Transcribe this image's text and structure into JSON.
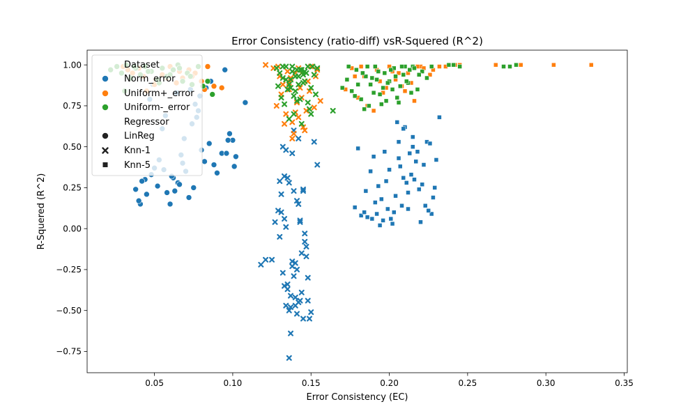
{
  "chart_data": {
    "type": "scatter",
    "title": "Error Consistency (ratio-diff) vsR-Squered (R^2)",
    "xlabel": "Error Consistency (EC)",
    "ylabel": "R-Squered (R^2)",
    "xlim": [
      0.007,
      0.352
    ],
    "ylim": [
      -0.88,
      1.09
    ],
    "xticks": [
      0.05,
      0.1,
      0.15,
      0.2,
      0.25,
      0.3,
      0.35
    ],
    "xtick_labels": [
      "0.05",
      "0.10",
      "0.15",
      "0.20",
      "0.25",
      "0.30",
      "0.35"
    ],
    "yticks": [
      -0.75,
      -0.5,
      -0.25,
      0.0,
      0.25,
      0.5,
      0.75,
      1.0
    ],
    "ytick_labels": [
      "−0.75",
      "−0.50",
      "−0.25",
      "0.00",
      "0.25",
      "0.50",
      "0.75",
      "1.00"
    ],
    "grid": false,
    "legend": {
      "position": "top-left",
      "hue_title": "Dataset",
      "hue_entries": [
        {
          "name": "Norm_error",
          "color": "#1f77b4"
        },
        {
          "name": "Uniform+_error",
          "color": "#ff7f0e"
        },
        {
          "name": "Uniform-_error",
          "color": "#2ca02c"
        }
      ],
      "style_title": "Regressor",
      "style_entries": [
        {
          "name": "LinReg",
          "marker": "circle"
        },
        {
          "name": "Knn-1",
          "marker": "x"
        },
        {
          "name": "Knn-5",
          "marker": "square"
        }
      ]
    },
    "series": [
      {
        "dataset": "Norm_error",
        "regressor": "LinReg",
        "color": "#1f77b4",
        "marker": "circle",
        "x": [
          0.038,
          0.041,
          0.045,
          0.048,
          0.05,
          0.052,
          0.055,
          0.058,
          0.06,
          0.062,
          0.065,
          0.067,
          0.07,
          0.072,
          0.075,
          0.078,
          0.08,
          0.082,
          0.085,
          0.088,
          0.09,
          0.093,
          0.095,
          0.098,
          0.1,
          0.102,
          0.108,
          0.04,
          0.044,
          0.049,
          0.053,
          0.057,
          0.061,
          0.066,
          0.069,
          0.073,
          0.076,
          0.083,
          0.086,
          0.096,
          0.047,
          0.051,
          0.059,
          0.064,
          0.071,
          0.074,
          0.079,
          0.042,
          0.056,
          0.063,
          0.068,
          0.077,
          0.097,
          0.101
        ],
        "y": [
          0.24,
          0.15,
          0.21,
          0.33,
          0.37,
          0.26,
          0.61,
          0.22,
          0.15,
          0.31,
          0.28,
          0.45,
          0.35,
          0.19,
          0.25,
          0.72,
          0.48,
          0.41,
          0.52,
          0.39,
          0.34,
          0.46,
          0.97,
          0.58,
          0.54,
          0.44,
          0.77,
          0.17,
          0.3,
          0.88,
          0.42,
          0.69,
          0.32,
          0.27,
          0.55,
          0.85,
          0.76,
          0.86,
          0.9,
          0.46,
          0.79,
          0.91,
          0.93,
          0.83,
          0.95,
          0.64,
          0.81,
          0.29,
          0.36,
          0.23,
          0.4,
          0.68,
          0.54,
          0.38
        ]
      },
      {
        "dataset": "Uniform+_error",
        "regressor": "LinReg",
        "color": "#ff7f0e",
        "marker": "circle",
        "x": [
          0.03,
          0.033,
          0.036,
          0.04,
          0.043,
          0.047,
          0.051,
          0.055,
          0.06,
          0.064,
          0.068,
          0.072,
          0.076,
          0.08,
          0.084,
          0.088,
          0.093,
          0.045,
          0.05,
          0.058,
          0.066,
          0.074,
          0.082
        ],
        "y": [
          0.99,
          0.97,
          0.95,
          0.98,
          0.93,
          0.96,
          0.91,
          0.94,
          0.99,
          0.89,
          0.92,
          0.97,
          0.95,
          0.9,
          0.99,
          0.87,
          0.86,
          0.84,
          0.88,
          0.92,
          0.96,
          0.93,
          0.85
        ]
      },
      {
        "dataset": "Uniform-_error",
        "regressor": "LinReg",
        "color": "#2ca02c",
        "marker": "circle",
        "x": [
          0.022,
          0.026,
          0.029,
          0.032,
          0.035,
          0.038,
          0.041,
          0.044,
          0.048,
          0.052,
          0.055,
          0.058,
          0.062,
          0.065,
          0.068,
          0.071,
          0.074,
          0.078,
          0.081,
          0.084,
          0.087,
          0.031,
          0.037,
          0.046,
          0.053,
          0.06,
          0.066,
          0.073
        ],
        "y": [
          0.97,
          0.99,
          0.95,
          1.0,
          0.92,
          0.98,
          0.94,
          0.99,
          0.96,
          0.91,
          0.98,
          0.93,
          0.97,
          1.0,
          0.9,
          0.95,
          0.88,
          0.99,
          0.87,
          0.9,
          0.82,
          0.84,
          0.99,
          0.96,
          0.89,
          0.94,
          0.98,
          0.93
        ]
      },
      {
        "dataset": "Norm_error",
        "regressor": "Knn-1",
        "color": "#1f77b4",
        "marker": "x",
        "x": [
          0.118,
          0.121,
          0.125,
          0.127,
          0.129,
          0.13,
          0.131,
          0.132,
          0.133,
          0.134,
          0.135,
          0.136,
          0.137,
          0.138,
          0.139,
          0.14,
          0.141,
          0.142,
          0.143,
          0.144,
          0.145,
          0.146,
          0.147,
          0.148,
          0.149,
          0.15,
          0.152,
          0.154,
          0.131,
          0.133,
          0.135,
          0.137,
          0.139,
          0.141,
          0.143,
          0.145,
          0.147,
          0.134,
          0.136,
          0.138,
          0.14,
          0.142,
          0.144,
          0.132,
          0.146,
          0.139,
          0.137,
          0.141,
          0.135,
          0.143,
          0.13,
          0.148,
          0.138,
          0.134,
          0.14,
          0.136,
          0.142,
          0.145,
          0.133
        ],
        "y": [
          -0.22,
          -0.19,
          -0.19,
          0.04,
          0.11,
          -0.05,
          0.21,
          -0.27,
          0.06,
          -0.47,
          -0.34,
          -0.5,
          -0.64,
          -0.2,
          -0.29,
          -0.42,
          -0.52,
          -0.45,
          0.04,
          -0.15,
          -0.55,
          -0.03,
          -0.11,
          -0.44,
          -0.55,
          -0.51,
          0.53,
          0.39,
          0.1,
          0.32,
          -0.37,
          -0.41,
          0.23,
          -0.25,
          -0.44,
          0.23,
          -0.17,
          0.01,
          0.28,
          -0.23,
          -0.47,
          0.15,
          -0.39,
          0.5,
          -0.08,
          0.6,
          -0.48,
          0.17,
          0.31,
          0.05,
          0.29,
          -0.3,
          0.46,
          0.48,
          -0.21,
          -0.79,
          0.55,
          0.24,
          -0.35
        ]
      },
      {
        "dataset": "Uniform+_error",
        "regressor": "Knn-1",
        "color": "#ff7f0e",
        "marker": "x",
        "x": [
          0.121,
          0.126,
          0.128,
          0.13,
          0.132,
          0.134,
          0.136,
          0.138,
          0.14,
          0.142,
          0.144,
          0.146,
          0.148,
          0.15,
          0.152,
          0.154,
          0.156,
          0.131,
          0.135,
          0.139,
          0.143,
          0.147,
          0.133,
          0.137,
          0.141,
          0.145,
          0.129,
          0.149,
          0.153,
          0.138,
          0.142,
          0.136,
          0.14,
          0.144
        ],
        "y": [
          1.0,
          0.98,
          0.75,
          0.93,
          0.88,
          0.7,
          0.85,
          0.65,
          0.95,
          0.68,
          0.8,
          0.6,
          0.9,
          0.99,
          0.74,
          0.97,
          0.78,
          0.82,
          0.96,
          0.58,
          0.86,
          0.72,
          0.64,
          0.92,
          0.77,
          0.62,
          0.99,
          0.84,
          0.93,
          0.55,
          0.98,
          0.89,
          0.71,
          0.95
        ]
      },
      {
        "dataset": "Uniform-_error",
        "regressor": "Knn-1",
        "color": "#2ca02c",
        "marker": "x",
        "x": [
          0.128,
          0.13,
          0.132,
          0.134,
          0.136,
          0.138,
          0.14,
          0.142,
          0.144,
          0.146,
          0.148,
          0.15,
          0.152,
          0.154,
          0.131,
          0.133,
          0.135,
          0.137,
          0.139,
          0.141,
          0.143,
          0.145,
          0.147,
          0.149,
          0.151,
          0.129,
          0.153,
          0.136,
          0.14,
          0.144,
          0.148,
          0.138,
          0.142,
          0.146,
          0.134,
          0.15,
          0.164,
          0.132,
          0.139,
          0.145,
          0.141,
          0.137,
          0.143
        ],
        "y": [
          0.98,
          0.95,
          0.92,
          0.99,
          0.88,
          0.96,
          0.84,
          0.93,
          0.97,
          0.9,
          0.99,
          0.86,
          0.94,
          0.98,
          0.8,
          0.76,
          0.85,
          0.91,
          0.7,
          0.97,
          0.79,
          0.89,
          0.95,
          0.73,
          0.99,
          0.87,
          0.82,
          0.67,
          0.93,
          0.64,
          0.77,
          0.99,
          0.88,
          0.96,
          0.91,
          0.7,
          0.72,
          0.99,
          0.81,
          0.94,
          0.78,
          0.86,
          0.97
        ]
      },
      {
        "dataset": "Norm_error",
        "regressor": "Knn-5",
        "color": "#1f77b4",
        "marker": "square",
        "x": [
          0.178,
          0.18,
          0.182,
          0.184,
          0.186,
          0.188,
          0.19,
          0.192,
          0.194,
          0.196,
          0.198,
          0.2,
          0.202,
          0.204,
          0.206,
          0.208,
          0.21,
          0.212,
          0.214,
          0.216,
          0.218,
          0.22,
          0.222,
          0.224,
          0.226,
          0.228,
          0.23,
          0.232,
          0.185,
          0.191,
          0.197,
          0.203,
          0.209,
          0.215,
          0.221,
          0.227,
          0.193,
          0.199,
          0.205,
          0.211,
          0.217,
          0.223,
          0.201,
          0.207,
          0.213,
          0.219,
          0.195,
          0.225,
          0.189,
          0.229,
          0.209,
          0.215,
          0.206,
          0.212
        ],
        "y": [
          0.13,
          0.49,
          0.08,
          0.1,
          0.07,
          0.35,
          0.44,
          0.09,
          0.02,
          0.05,
          0.29,
          0.36,
          0.03,
          0.2,
          0.43,
          0.14,
          0.62,
          0.12,
          0.33,
          0.3,
          0.47,
          0.04,
          0.39,
          0.53,
          0.52,
          0.19,
          0.42,
          0.68,
          0.23,
          0.16,
          0.47,
          0.1,
          0.31,
          0.56,
          0.27,
          0.09,
          0.26,
          0.12,
          0.65,
          0.28,
          0.41,
          0.14,
          0.06,
          0.38,
          0.46,
          0.24,
          0.18,
          0.11,
          0.06,
          0.25,
          0.61,
          0.5,
          0.53,
          0.22
        ]
      },
      {
        "dataset": "Uniform+_error",
        "regressor": "Knn-5",
        "color": "#ff7f0e",
        "marker": "square",
        "x": [
          0.172,
          0.176,
          0.18,
          0.184,
          0.188,
          0.192,
          0.196,
          0.2,
          0.204,
          0.208,
          0.212,
          0.216,
          0.22,
          0.224,
          0.228,
          0.232,
          0.236,
          0.242,
          0.245,
          0.268,
          0.284,
          0.305,
          0.329,
          0.186,
          0.194,
          0.202,
          0.21,
          0.218,
          0.226,
          0.19,
          0.198,
          0.206,
          0.214,
          0.222,
          0.182,
          0.178
        ],
        "y": [
          0.85,
          0.98,
          0.8,
          0.93,
          0.88,
          0.97,
          0.83,
          0.99,
          0.91,
          0.87,
          0.95,
          0.78,
          0.99,
          0.92,
          0.97,
          0.99,
          0.99,
          1.0,
          1.0,
          1.0,
          1.0,
          1.0,
          1.0,
          0.75,
          0.9,
          0.96,
          0.84,
          0.99,
          0.94,
          0.72,
          0.86,
          0.95,
          0.89,
          0.98,
          0.99,
          0.93
        ]
      },
      {
        "dataset": "Uniform-_error",
        "regressor": "Knn-5",
        "color": "#2ca02c",
        "marker": "square",
        "x": [
          0.17,
          0.173,
          0.176,
          0.179,
          0.182,
          0.185,
          0.188,
          0.191,
          0.194,
          0.197,
          0.2,
          0.203,
          0.206,
          0.209,
          0.212,
          0.215,
          0.218,
          0.221,
          0.224,
          0.227,
          0.238,
          0.241,
          0.245,
          0.273,
          0.277,
          0.281,
          0.174,
          0.178,
          0.183,
          0.187,
          0.192,
          0.196,
          0.201,
          0.205,
          0.21,
          0.214,
          0.219,
          0.18,
          0.189,
          0.198,
          0.207,
          0.216,
          0.184,
          0.193,
          0.202,
          0.211,
          0.186,
          0.195,
          0.204,
          0.213,
          0.19,
          0.199,
          0.208
        ],
        "y": [
          0.86,
          0.91,
          0.84,
          0.97,
          0.79,
          0.93,
          0.88,
          0.99,
          0.82,
          0.95,
          0.9,
          0.98,
          0.77,
          0.94,
          0.89,
          0.99,
          0.85,
          0.96,
          0.92,
          0.99,
          1.0,
          1.0,
          0.99,
          0.99,
          0.99,
          1.0,
          0.99,
          0.81,
          0.95,
          0.75,
          0.91,
          0.86,
          0.97,
          0.8,
          0.99,
          0.83,
          0.94,
          0.88,
          0.92,
          0.78,
          0.87,
          0.98,
          0.73,
          0.96,
          0.85,
          0.9,
          0.99,
          0.76,
          0.93,
          0.97,
          0.83,
          0.89,
          0.99
        ]
      }
    ]
  }
}
